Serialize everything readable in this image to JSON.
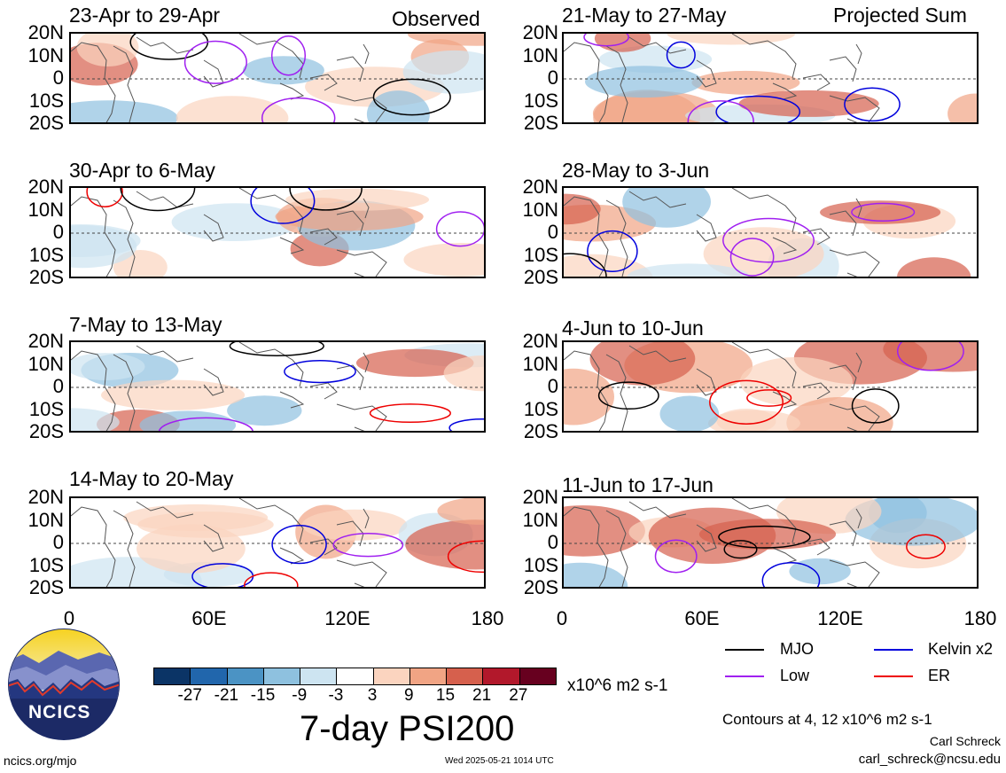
{
  "headers": {
    "left": "Observed",
    "right": "Projected Sum"
  },
  "observed_periods": [
    "23-Apr to 29-Apr",
    "30-Apr to 6-May",
    "7-May to 13-May",
    "14-May to 20-May"
  ],
  "projected_periods": [
    "21-May to 27-May",
    "28-May to 3-Jun",
    "4-Jun to 10-Jun",
    "11-Jun to 17-Jun"
  ],
  "lat_labels": [
    "20N",
    "10N",
    "0",
    "10S",
    "20S"
  ],
  "lon_labels": [
    "0",
    "60E",
    "120E",
    "180"
  ],
  "colorbar": {
    "ticks": [
      "-27",
      "-21",
      "-15",
      "-9",
      "-3",
      "3",
      "9",
      "15",
      "21",
      "27"
    ],
    "colors": [
      "#0b3466",
      "#2166ac",
      "#4b93c4",
      "#8ec1df",
      "#cde4f1",
      "#ffffff",
      "#fbd4bf",
      "#f1a484",
      "#d6604d",
      "#b2182b",
      "#67001f"
    ],
    "units": "x10^6 m2 s-1"
  },
  "title": "7-day PSI200",
  "logo_text": "NCICS",
  "legend": [
    {
      "label": "MJO",
      "color": "#000000"
    },
    {
      "label": "Kelvin x2",
      "color": "#0000dd"
    },
    {
      "label": "Low",
      "color": "#a020f0"
    },
    {
      "label": "ER",
      "color": "#ee0000"
    }
  ],
  "contour_note": "Contours at 4, 12 x10^6 m2 s-1",
  "author": "Carl Schreck",
  "email": "carl_schreck@ncsu.edu",
  "url": "ncics.org/mjo",
  "timestamp": "Wed 2025-05-21 1014 UTC"
}
